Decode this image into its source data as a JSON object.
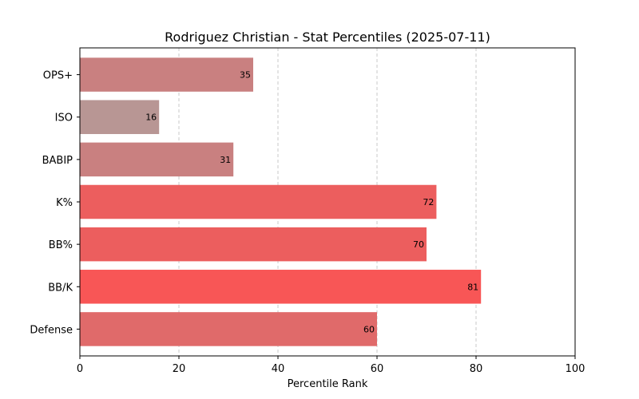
{
  "chart_data": {
    "type": "bar",
    "orientation": "horizontal",
    "title": "Rodriguez Christian - Stat Percentiles (2025-07-11)",
    "xlabel": "Percentile Rank",
    "ylabel": "",
    "xlim": [
      0,
      100
    ],
    "xticks": [
      0,
      20,
      40,
      60,
      80,
      100
    ],
    "grid": "x-dashed",
    "categories": [
      "OPS+",
      "ISO",
      "BABIP",
      "K%",
      "BB%",
      "BB/K",
      "Defense"
    ],
    "values": [
      35,
      16,
      31,
      72,
      70,
      81,
      60
    ],
    "colors": [
      "#c98080",
      "#b89694",
      "#c98080",
      "#ec5e5e",
      "#ec5e5e",
      "#f85656",
      "#e06a6a"
    ]
  }
}
